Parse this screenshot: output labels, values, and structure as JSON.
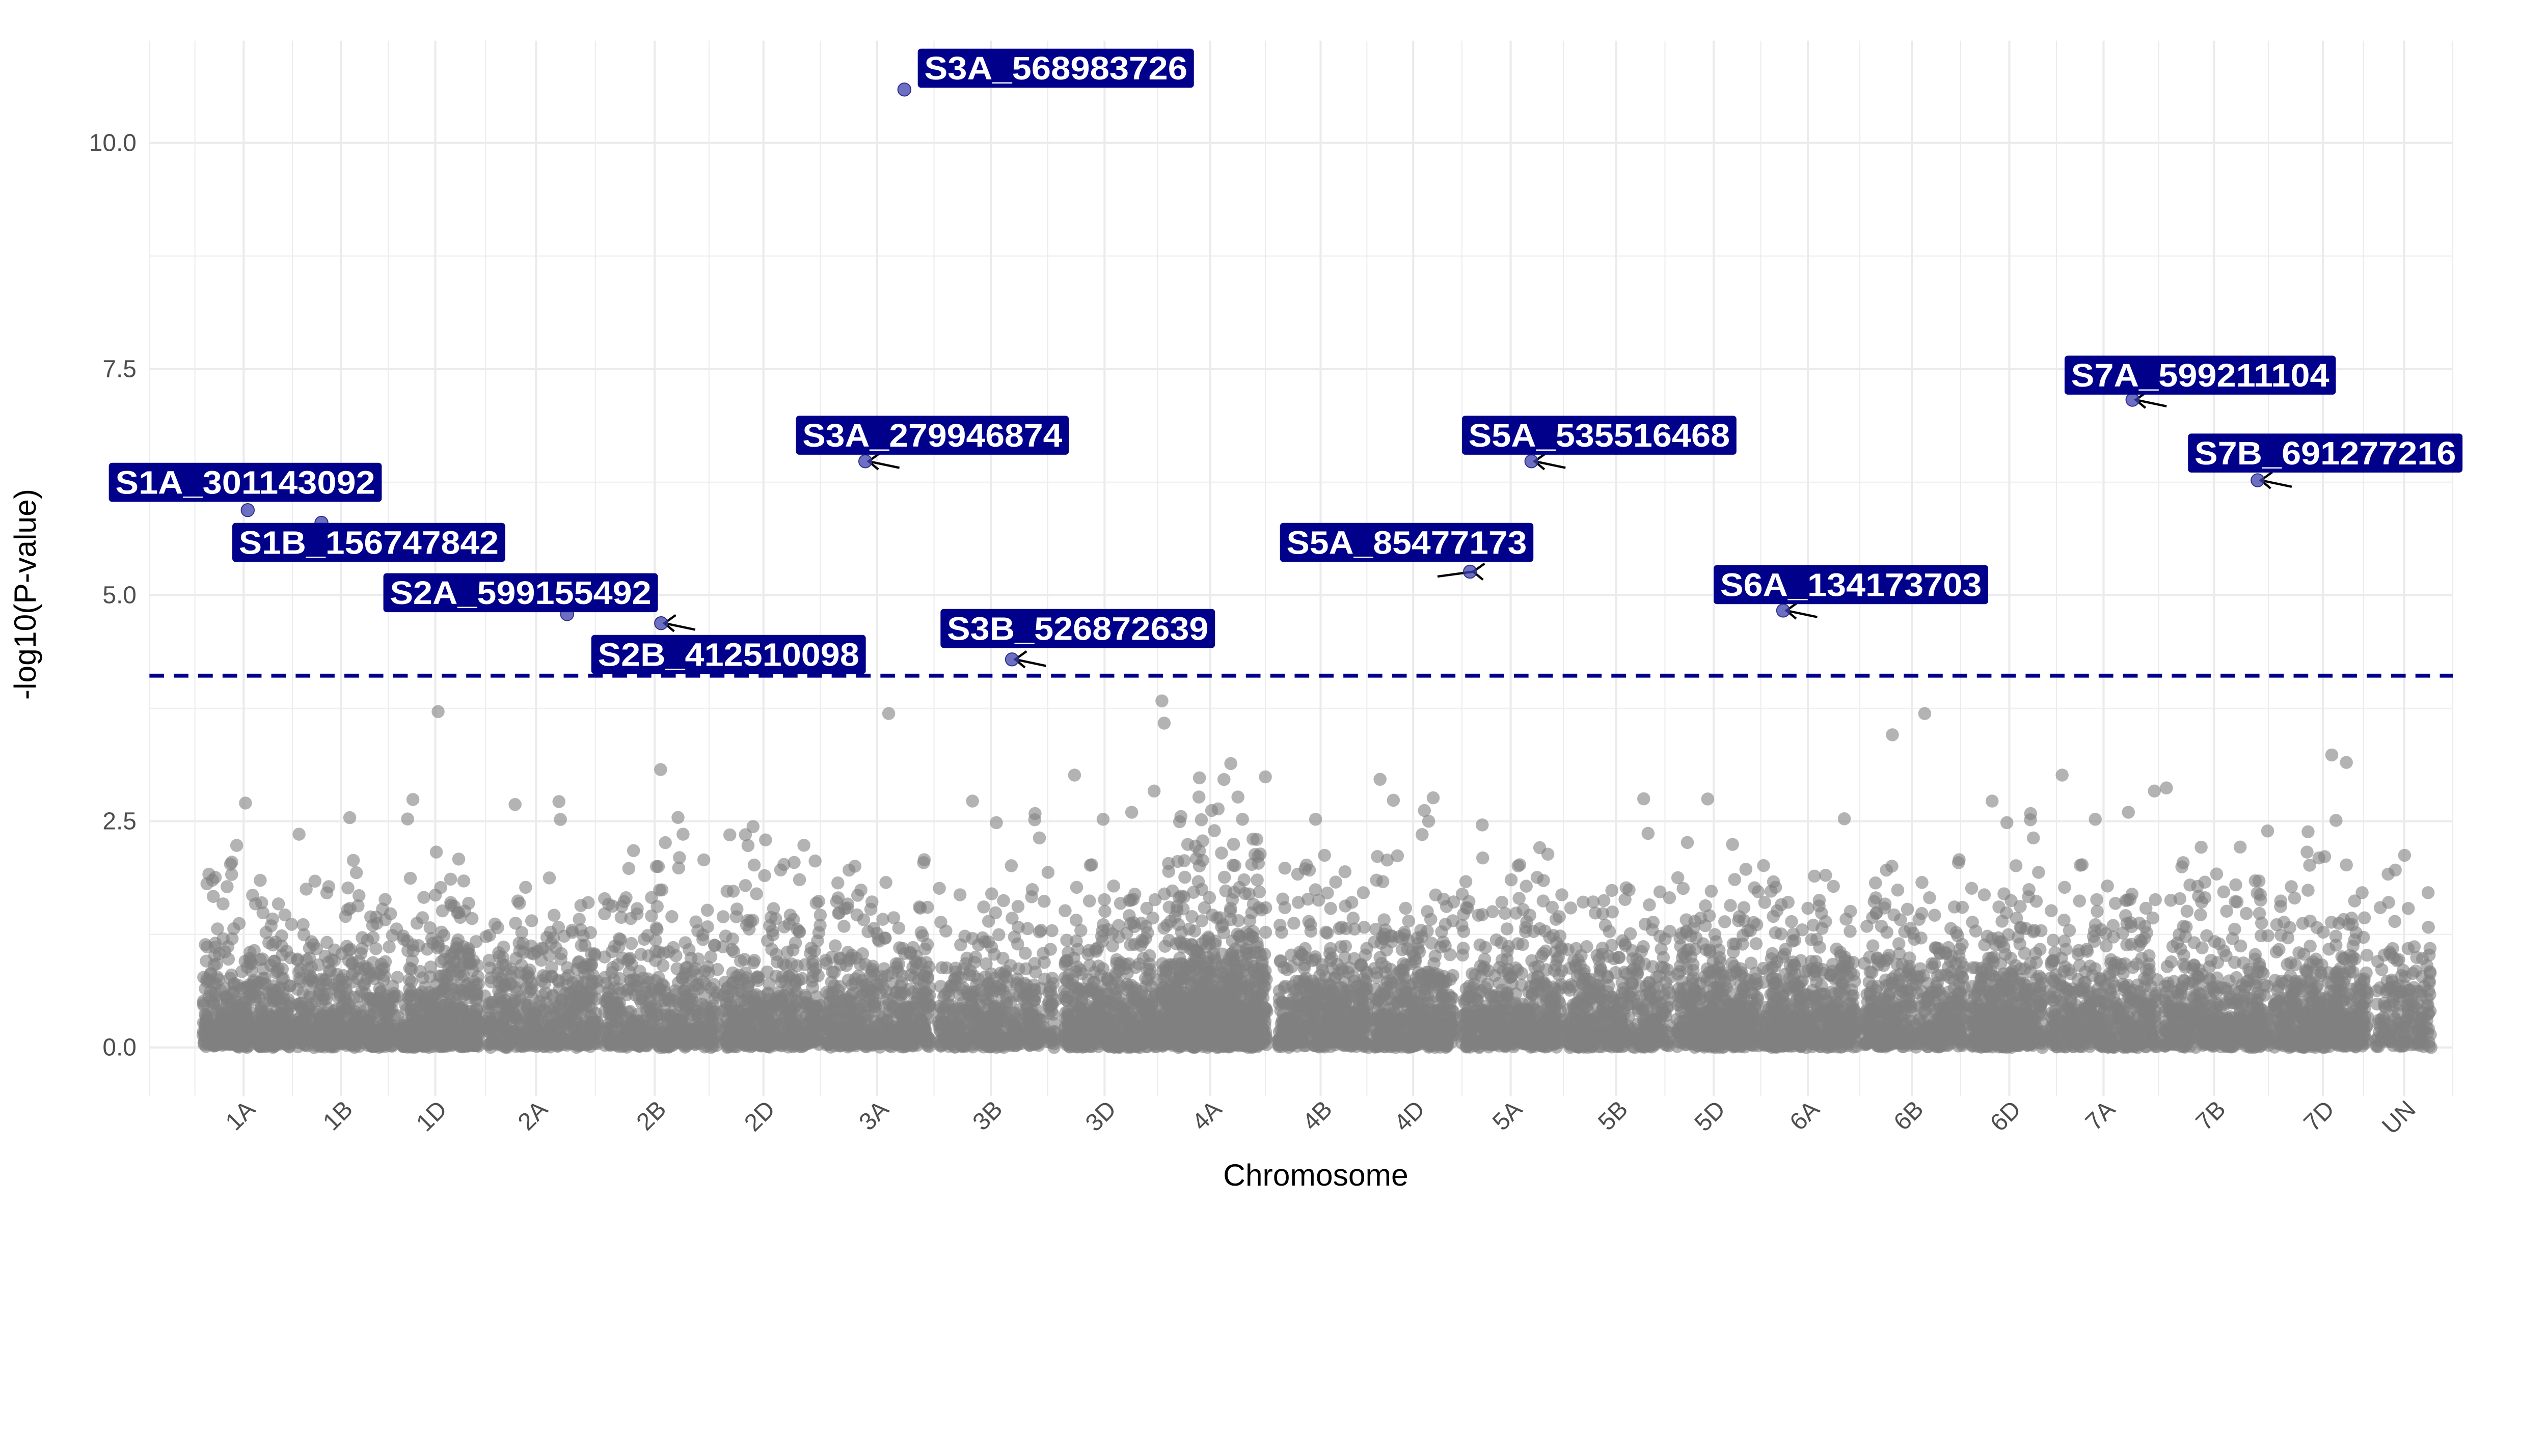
{
  "chart_data": {
    "type": "scatter",
    "subtype": "manhattan",
    "title": "",
    "xlabel": "Chromosome",
    "ylabel": "-log10(P-value)",
    "categories": [
      "1A",
      "1B",
      "1D",
      "2A",
      "2B",
      "2D",
      "3A",
      "3B",
      "3D",
      "4A",
      "4B",
      "4D",
      "5A",
      "5B",
      "5D",
      "6A",
      "6B",
      "6D",
      "7A",
      "7B",
      "7D",
      "UN"
    ],
    "yticks": [
      "0.0",
      "2.5",
      "5.0",
      "7.5",
      "10.0"
    ],
    "ylim": [
      -0.5,
      11.1
    ],
    "grid": true,
    "legend": "none",
    "threshold": 4.11,
    "colors": {
      "background_points": "#808080",
      "significant_points": "#3b3fae",
      "threshold": "#00008b",
      "label_fill": "#00008b",
      "label_text": "#ffffff"
    },
    "significant": [
      {
        "label": "S1A_301143092",
        "chromosome": "1A",
        "position_fraction": 0.5,
        "value": 5.94
      },
      {
        "label": "S1B_156747842",
        "chromosome": "1B",
        "position_fraction": 0.24,
        "value": 5.8
      },
      {
        "label": "S2A_599155492",
        "chromosome": "2A",
        "position_fraction": 0.73,
        "value": 4.79
      },
      {
        "label": "S2B_412510098",
        "chromosome": "2B",
        "position_fraction": 0.5,
        "value": 4.69
      },
      {
        "label": "S3A_279946874",
        "chromosome": "3A",
        "position_fraction": 0.38,
        "value": 6.48
      },
      {
        "label": "S3A_568983726",
        "chromosome": "3A",
        "position_fraction": 0.75,
        "value": 10.59
      },
      {
        "label": "S3B_526872639",
        "chromosome": "3B",
        "position_fraction": 0.63,
        "value": 4.29
      },
      {
        "label": "S5A_85477173",
        "chromosome": "5A",
        "position_fraction": 0.08,
        "value": 5.26
      },
      {
        "label": "S5A_535516468",
        "chromosome": "5A",
        "position_fraction": 0.69,
        "value": 6.48
      },
      {
        "label": "S6A_134173703",
        "chromosome": "6A",
        "position_fraction": 0.22,
        "value": 4.83
      },
      {
        "label": "S7A_599211104",
        "chromosome": "7A",
        "position_fraction": 0.77,
        "value": 7.16
      },
      {
        "label": "S7B_691277216",
        "chromosome": "7B",
        "position_fraction": 0.89,
        "value": 6.27
      }
    ],
    "background_max_value": 3.86
  }
}
